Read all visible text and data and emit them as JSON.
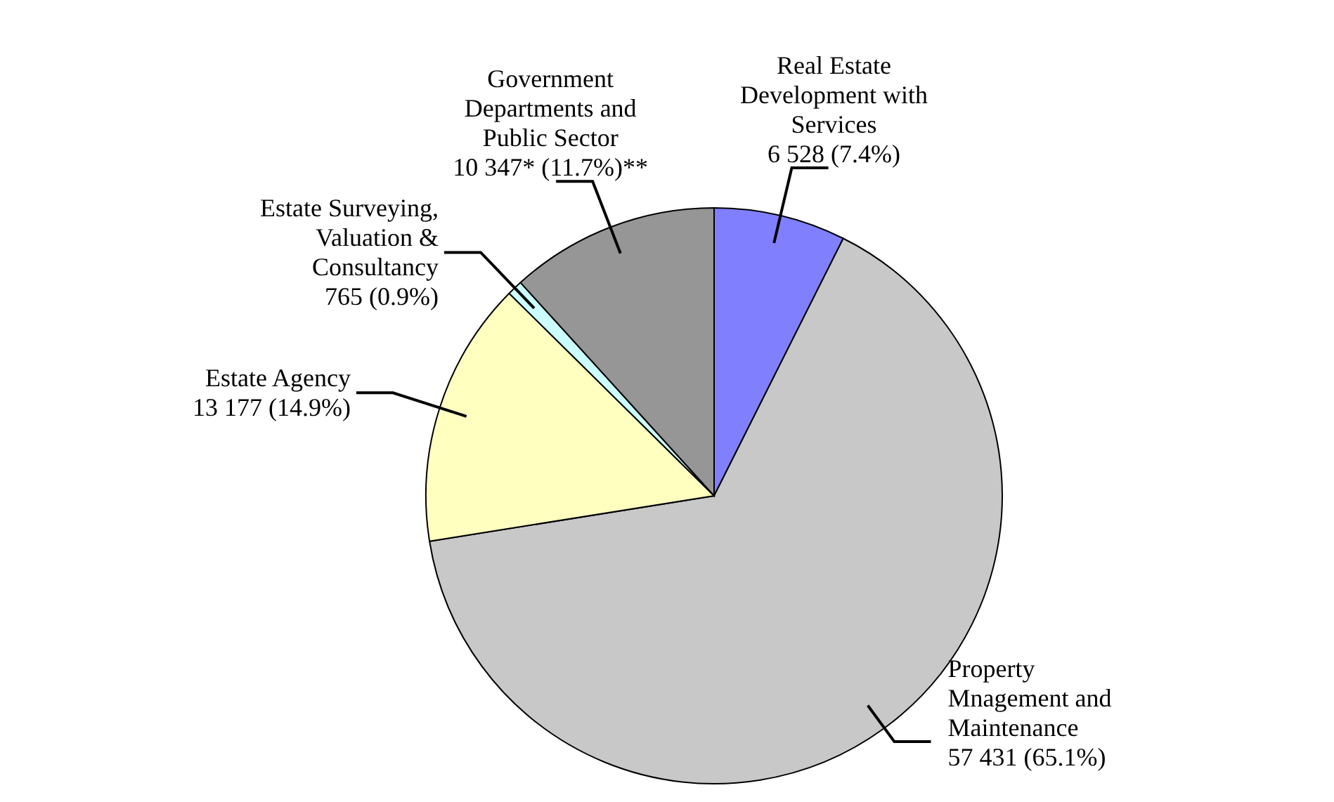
{
  "chart_data": {
    "type": "pie",
    "categories": [
      "Real Estate Development with Services",
      "Property Mnagement and Maintenance",
      "Estate Agency",
      "Estate Surveying, Valuation & Consultancy",
      "Government Departments and Public Sector"
    ],
    "values": [
      6528,
      57431,
      13177,
      765,
      10347
    ],
    "value_labels": [
      "6 528 (7.4%)",
      "57 431 (65.1%)",
      "13 177 (14.9%)",
      "765 (0.9%)",
      "10 347* (11.7%)**"
    ],
    "colors": [
      "#8080ff",
      "#c8c8c8",
      "#ffffc0",
      "#ccffff",
      "#969696"
    ]
  }
}
